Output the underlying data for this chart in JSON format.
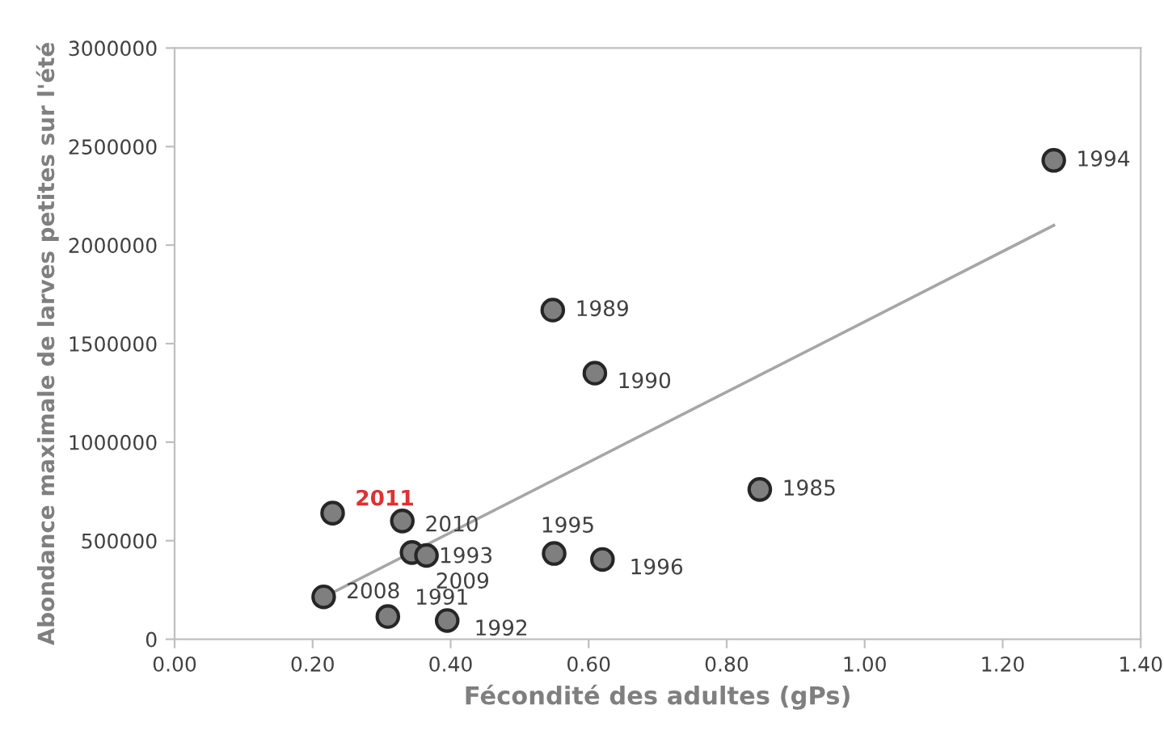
{
  "chart_data": {
    "type": "scatter",
    "xlabel": "Fécondité des adultes (gPs)",
    "ylabel": "Abondance maximale de larves petites sur l'été",
    "xlim": [
      0,
      1.4
    ],
    "xticks": [
      {
        "value": 0,
        "label": "0.00"
      },
      {
        "value": 0.2,
        "label": "0.20"
      },
      {
        "value": 0.4,
        "label": "0.40"
      },
      {
        "value": 0.6,
        "label": "0.60"
      },
      {
        "value": 0.8,
        "label": "0.80"
      },
      {
        "value": 1.0,
        "label": "1.00"
      },
      {
        "value": 1.2,
        "label": "1.20"
      },
      {
        "value": 1.4,
        "label": "1.40"
      }
    ],
    "ylim": [
      0,
      3000000
    ],
    "yticks": [
      0,
      500000,
      1000000,
      1500000,
      2000000,
      2500000,
      3000000
    ],
    "grid": false,
    "legend": false,
    "series": [
      {
        "marker": "circle",
        "color": "#7f7f7f",
        "x": [
          0.229,
          0.33,
          0.344,
          0.365,
          0.55,
          0.62,
          0.216,
          0.309,
          0.395,
          1.274,
          0.548,
          0.609,
          0.848
        ],
        "values": [
          640000,
          600000,
          440000,
          425000,
          435000,
          405000,
          215000,
          115000,
          95000,
          2430000,
          1670000,
          1350000,
          760000
        ]
      },
      {
        "type": "line",
        "color": "#a6a6a6",
        "x": [
          0.224,
          1.274
        ],
        "values": [
          228000,
          2100000
        ]
      }
    ],
    "annotations": [
      {
        "text": "2011",
        "x": 0.229,
        "y": 640000
      },
      {
        "text": "2010",
        "x": 0.33,
        "y": 600000
      },
      {
        "text": "1993",
        "x": 0.344,
        "y": 440000
      },
      {
        "text": "2009",
        "x": 0.365,
        "y": 425000
      },
      {
        "text": "1995",
        "x": 0.55,
        "y": 435000
      },
      {
        "text": "1996",
        "x": 0.62,
        "y": 405000
      },
      {
        "text": "2008",
        "x": 0.216,
        "y": 215000
      },
      {
        "text": "1991",
        "x": 0.309,
        "y": 115000
      },
      {
        "text": "1992",
        "x": 0.395,
        "y": 95000
      },
      {
        "text": "1994",
        "x": 1.274,
        "y": 2430000
      },
      {
        "text": "1989",
        "x": 0.548,
        "y": 1670000
      },
      {
        "text": "1990",
        "x": 0.609,
        "y": 1350000
      },
      {
        "text": "1985",
        "x": 0.848,
        "y": 760000
      }
    ]
  }
}
